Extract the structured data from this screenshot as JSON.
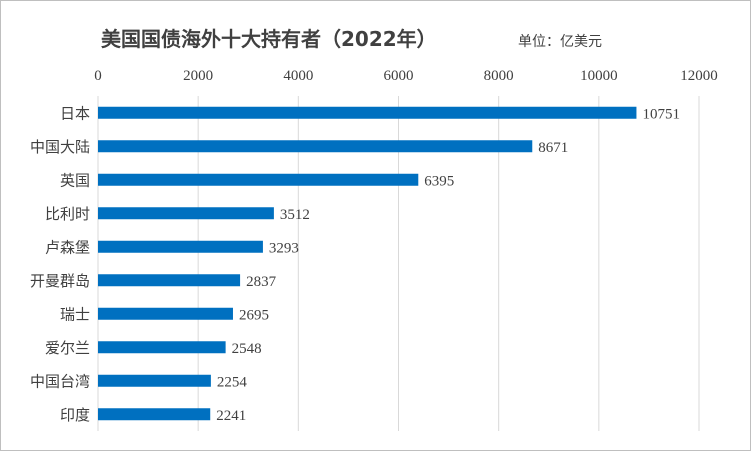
{
  "chart_data": {
    "type": "bar",
    "orientation": "horizontal",
    "title": "美国国债海外十大持有者（2022年）",
    "unit": "单位：亿美元",
    "categories": [
      "日本",
      "中国大陆",
      "英国",
      "比利时",
      "卢森堡",
      "开曼群岛",
      "瑞士",
      "爱尔兰",
      "中国台湾",
      "印度"
    ],
    "values": [
      10751,
      8671,
      6395,
      3512,
      3293,
      2837,
      2695,
      2548,
      2254,
      2241
    ],
    "value_labels": [
      "10751",
      "8671",
      "6395",
      "3512",
      "3293",
      "2837",
      "2695",
      "2548",
      "2254",
      "2241"
    ],
    "xlim": [
      0,
      12000
    ],
    "xticks": [
      0,
      2000,
      4000,
      6000,
      8000,
      10000,
      12000
    ],
    "xtick_labels": [
      "0",
      "2000",
      "4000",
      "6000",
      "8000",
      "10000",
      "12000"
    ],
    "x_axis_position": "top",
    "grid": true,
    "legend": false,
    "bar_color": "#0070c0",
    "grid_color": "#d9d9d9"
  }
}
